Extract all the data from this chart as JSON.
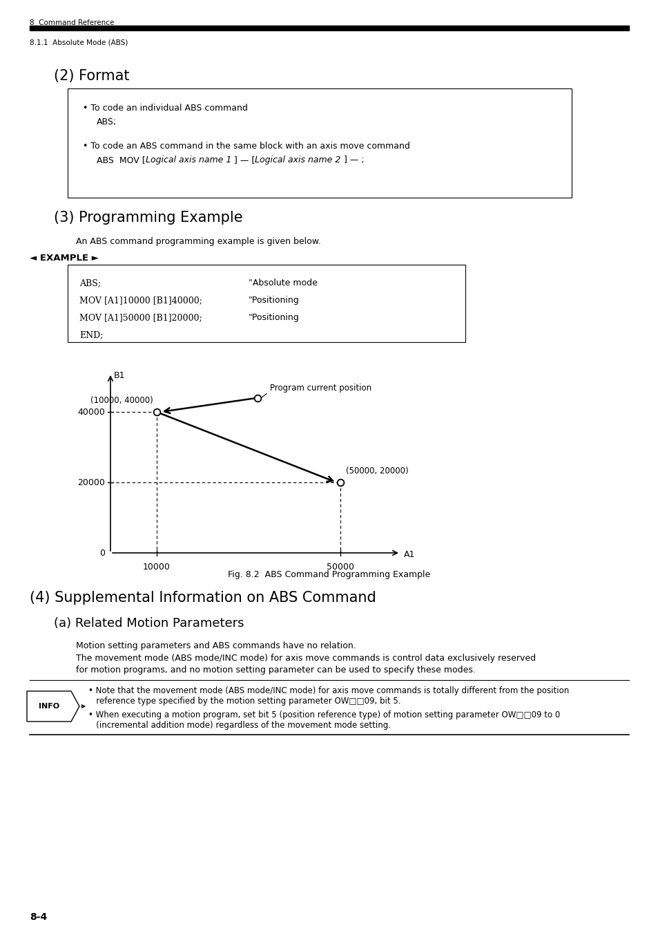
{
  "bg_color": "#ffffff",
  "header_text1": "8  Command Reference",
  "header_text2": "8.1.1  Absolute Mode (ABS)",
  "section2_title": "(2) Format",
  "format_bullet1_line1": "• To code an individual ABS command",
  "format_bullet1_line2": "ABS;",
  "format_bullet2_line1": "• To code an ABS command in the same block with an axis move command",
  "format_bullet2_pre": "    ABS  MOV [",
  "format_bullet2_italic1": "Logical axis name 1",
  "format_bullet2_mid": " ] — [",
  "format_bullet2_italic2": "Logical axis name 2",
  "format_bullet2_end": " ] — ;",
  "section3_title": "(3) Programming Example",
  "section3_subtitle": "An ABS command programming example is given below.",
  "example_label": "◄ EXAMPLE ►",
  "code_lines_left": [
    "ABS;",
    "MOV [A1]10000 [B1]40000;",
    "MOV [A1]50000 [B1]20000;",
    "END;"
  ],
  "code_lines_right": [
    "\"Absolute mode",
    "\"Positioning",
    "\"Positioning",
    ""
  ],
  "fig_caption": "Fig. 8.2  ABS Command Programming Example",
  "prog_pos_label": "Program current position",
  "label_10000_40000": "(10000, 40000)",
  "label_50000_20000": "(50000, 20000)",
  "section4_title": "(4) Supplemental Information on ABS Command",
  "section4a_title": "(a) Related Motion Parameters",
  "section4a_para1": "Motion setting parameters and ABS commands have no relation.",
  "section4a_para2": "The movement mode (ABS mode/INC mode) for axis move commands is control data exclusively reserved",
  "section4a_para3": "for motion programs, and no motion setting parameter can be used to specify these modes.",
  "info_bullet1_line1": "• Note that the movement mode (ABS mode/INC mode) for axis move commands is totally different from the position",
  "info_bullet1_line2": "   reference type specified by the motion setting parameter OW□□09, bit 5.",
  "info_bullet2_line1": "• When executing a motion program, set bit 5 (position reference type) of motion setting parameter OW□□09 to 0",
  "info_bullet2_line2": "   (incremental addition mode) regardless of the movement mode setting.",
  "page_number": "8-4"
}
